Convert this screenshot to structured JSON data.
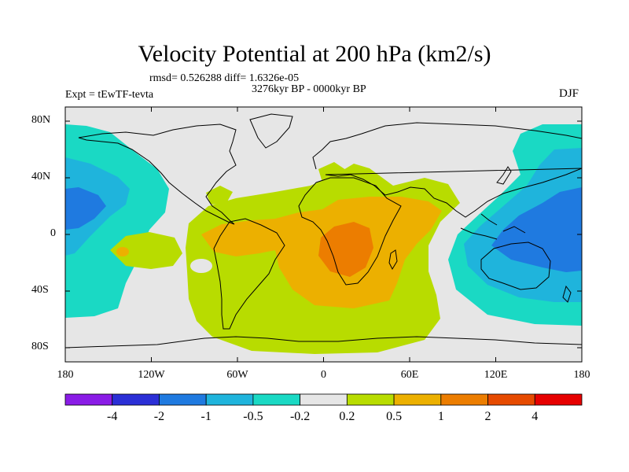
{
  "title": "Velocity Potential at 200 hPa (km2/s)",
  "stats_line": "rmsd= 0.526288 diff= 1.6326e-05",
  "period": "3276kyr BP - 0000kyr BP",
  "experiment": "Expt = tEwTF-tevta",
  "season": "DJF",
  "map": {
    "projection": "cylindrical-equidistant",
    "lon_range": [
      -180,
      180
    ],
    "lat_range": [
      -90,
      90
    ],
    "y_ticks": [
      {
        "lat": 80,
        "label": "80N"
      },
      {
        "lat": 40,
        "label": "40N"
      },
      {
        "lat": 0,
        "label": "0"
      },
      {
        "lat": -40,
        "label": "40S"
      },
      {
        "lat": -80,
        "label": "80S"
      }
    ],
    "x_ticks": [
      {
        "lon": -180,
        "label": "180"
      },
      {
        "lon": -120,
        "label": "120W"
      },
      {
        "lon": -60,
        "label": "60W"
      },
      {
        "lon": 0,
        "label": "0"
      },
      {
        "lon": 60,
        "label": "60E"
      },
      {
        "lon": 120,
        "label": "120E"
      },
      {
        "lon": 180,
        "label": "180"
      }
    ]
  },
  "colorbar": {
    "colors": [
      "#8a1ce6",
      "#2b2fd6",
      "#1f7ae0",
      "#1fb4dc",
      "#1ad9c4",
      "#e6e6e6",
      "#b8dc00",
      "#ecb000",
      "#ec7d00",
      "#e64a00",
      "#e60000"
    ],
    "labels": [
      {
        "boundary": 1,
        "text": "-4"
      },
      {
        "boundary": 2,
        "text": "-2"
      },
      {
        "boundary": 3,
        "text": "-1"
      },
      {
        "boundary": 4,
        "text": "-0.5"
      },
      {
        "boundary": 5,
        "text": "-0.2"
      },
      {
        "boundary": 6,
        "text": "0.2"
      },
      {
        "boundary": 7,
        "text": "0.5"
      },
      {
        "boundary": 8,
        "text": "1"
      },
      {
        "boundary": 9,
        "text": "2"
      },
      {
        "boundary": 10,
        "text": "4"
      }
    ]
  },
  "fields": {
    "background_color": "#e6e6e6",
    "neg_1": "#1ad9c4",
    "neg_2": "#1fb4dc",
    "neg_3": "#1f7ae0",
    "pos_1": "#b8dc00",
    "pos_2": "#ecb000",
    "pos_3": "#ec7d00"
  }
}
